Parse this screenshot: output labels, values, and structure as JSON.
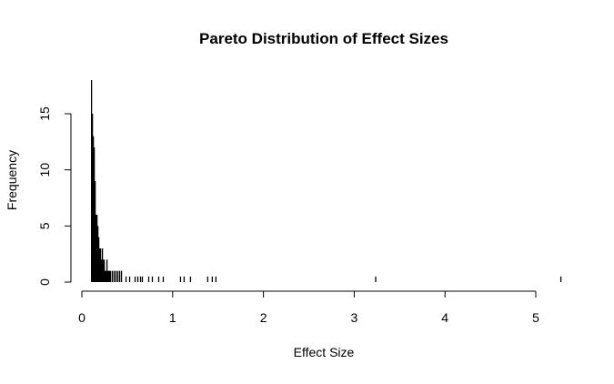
{
  "chart_data": {
    "type": "bar",
    "title": "Pareto Distribution of Effect Sizes",
    "xlabel": "Effect Size",
    "ylabel": "Frequency",
    "xlim": [
      0,
      5.3
    ],
    "ylim": [
      0,
      18
    ],
    "x_ticks": [
      "0",
      "1",
      "2",
      "3",
      "4",
      "5"
    ],
    "y_ticks": [
      "0",
      "5",
      "10",
      "15"
    ],
    "grid": false,
    "legend": "none",
    "bar_color": "#000000",
    "bin_width": 0.01,
    "bins": [
      {
        "x": 0.1,
        "y": 18
      },
      {
        "x": 0.11,
        "y": 15
      },
      {
        "x": 0.12,
        "y": 13
      },
      {
        "x": 0.13,
        "y": 12
      },
      {
        "x": 0.14,
        "y": 9
      },
      {
        "x": 0.15,
        "y": 6
      },
      {
        "x": 0.16,
        "y": 6
      },
      {
        "x": 0.17,
        "y": 5
      },
      {
        "x": 0.18,
        "y": 4
      },
      {
        "x": 0.19,
        "y": 3
      },
      {
        "x": 0.2,
        "y": 3
      },
      {
        "x": 0.21,
        "y": 2
      },
      {
        "x": 0.22,
        "y": 3
      },
      {
        "x": 0.23,
        "y": 2
      },
      {
        "x": 0.24,
        "y": 2
      },
      {
        "x": 0.25,
        "y": 1
      },
      {
        "x": 0.26,
        "y": 1
      },
      {
        "x": 0.27,
        "y": 2
      },
      {
        "x": 0.28,
        "y": 1
      },
      {
        "x": 0.29,
        "y": 1
      },
      {
        "x": 0.3,
        "y": 1
      },
      {
        "x": 0.31,
        "y": 1
      },
      {
        "x": 0.33,
        "y": 1
      },
      {
        "x": 0.35,
        "y": 1
      },
      {
        "x": 0.37,
        "y": 1
      },
      {
        "x": 0.39,
        "y": 1
      },
      {
        "x": 0.41,
        "y": 1
      },
      {
        "x": 0.43,
        "y": 1
      },
      {
        "x": 0.48,
        "y": 0.5
      },
      {
        "x": 0.52,
        "y": 0.5
      },
      {
        "x": 0.58,
        "y": 0.5
      },
      {
        "x": 0.61,
        "y": 0.5
      },
      {
        "x": 0.64,
        "y": 0.5
      },
      {
        "x": 0.66,
        "y": 0.5
      },
      {
        "x": 0.73,
        "y": 0.5
      },
      {
        "x": 0.77,
        "y": 0.5
      },
      {
        "x": 0.84,
        "y": 0.5
      },
      {
        "x": 0.89,
        "y": 0.5
      },
      {
        "x": 1.08,
        "y": 0.5
      },
      {
        "x": 1.12,
        "y": 0.5
      },
      {
        "x": 1.19,
        "y": 0.5
      },
      {
        "x": 1.38,
        "y": 0.5
      },
      {
        "x": 1.43,
        "y": 0.5
      },
      {
        "x": 1.47,
        "y": 0.5
      },
      {
        "x": 3.23,
        "y": 0.5
      },
      {
        "x": 5.27,
        "y": 0.5
      }
    ]
  }
}
